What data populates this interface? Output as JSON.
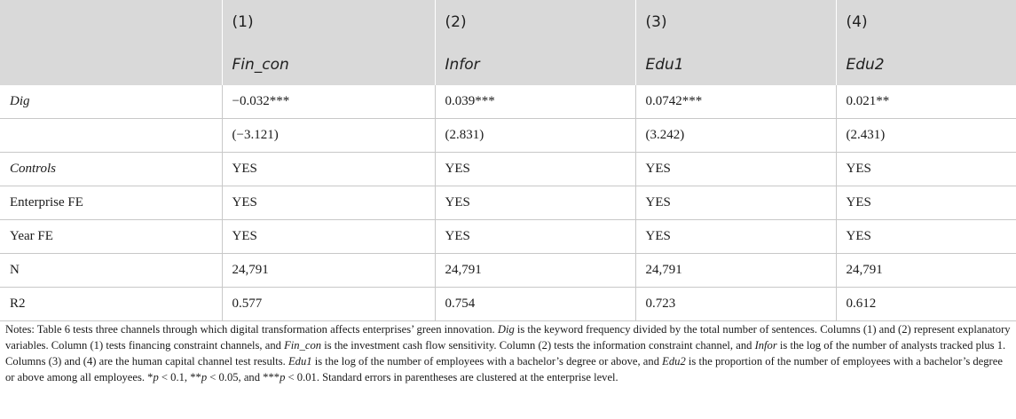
{
  "table": {
    "header_numbers": [
      "",
      "(1)",
      "(2)",
      "(3)",
      "(4)"
    ],
    "header_vars": [
      "",
      "Fin_con",
      "Infor",
      "Edu1",
      "Edu2"
    ],
    "rows": [
      {
        "label": "Dig",
        "italic": true,
        "cells": [
          "−0.032***",
          "0.039***",
          "0.0742***",
          "0.021**"
        ]
      },
      {
        "label": "",
        "italic": false,
        "cells": [
          "(−3.121)",
          "(2.831)",
          "(3.242)",
          "(2.431)"
        ]
      },
      {
        "label": "Controls",
        "italic": true,
        "cells": [
          "YES",
          "YES",
          "YES",
          "YES"
        ]
      },
      {
        "label": "Enterprise FE",
        "italic": false,
        "cells": [
          "YES",
          "YES",
          "YES",
          "YES"
        ]
      },
      {
        "label": "Year FE",
        "italic": false,
        "cells": [
          "YES",
          "YES",
          "YES",
          "YES"
        ]
      },
      {
        "label": "N",
        "italic": false,
        "cells": [
          "24,791",
          "24,791",
          "24,791",
          "24,791"
        ]
      },
      {
        "label": "R2",
        "italic": false,
        "cells": [
          "0.577",
          "0.754",
          "0.723",
          "0.612"
        ]
      }
    ]
  },
  "notes": {
    "prefix": "Notes: Table 6 tests three channels through which digital transformation affects enterprises’ green innovation. ",
    "dig": "Dig",
    "s1": " is the keyword frequency divided by the total number of sentences. Columns (1) and (2) represent explanatory variables. Column (1) tests financing constraint channels, and ",
    "fin_con": "Fin_con",
    "s2": " is the investment cash flow sensitivity. Column (2) tests the information constraint channel, and ",
    "infor": "Infor",
    "s3": " is the log of the number of analysts tracked plus 1. Columns (3) and (4) are the human capital channel test results. ",
    "edu1": "Edu1",
    "s4": " is the log of the number of employees with a bachelor’s degree or above, and ",
    "edu2": "Edu2",
    "s5": " is the proportion of the number of employees with a bachelor’s degree or above among all employees. *",
    "p1": "p",
    "s6": " < 0.1, **",
    "p2": "p",
    "s7": " < 0.05, and ***",
    "p3": "p",
    "s8": " < 0.01. Standard errors in parentheses are clustered at the enterprise level."
  }
}
